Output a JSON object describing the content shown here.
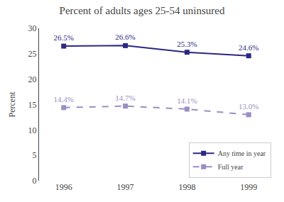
{
  "chart_data": {
    "type": "line",
    "title": "Percent of adults ages 25-54 uninsured",
    "categories": [
      "1996",
      "1997",
      "1998",
      "1999"
    ],
    "series": [
      {
        "name": "Any time in year",
        "color": "#2B2882",
        "marker": "square",
        "line_style": "solid",
        "values": [
          26.5,
          26.6,
          25.3,
          24.6
        ],
        "value_labels": [
          "26.5%",
          "26.6%",
          "25.3%",
          "24.6%"
        ]
      },
      {
        "name": "Full year",
        "color": "#9B8EC4",
        "marker": "square",
        "line_style": "dashed",
        "values": [
          14.4,
          14.7,
          14.1,
          13.0
        ],
        "value_labels": [
          "14.4%",
          "14.7%",
          "14.1%",
          "13.0%"
        ]
      }
    ],
    "ylabel": "Percent",
    "ylim": [
      0,
      30
    ],
    "yticks": [
      0,
      5,
      10,
      15,
      20,
      25,
      30
    ],
    "grid": false,
    "legend": "lower right",
    "data_labels": true
  }
}
